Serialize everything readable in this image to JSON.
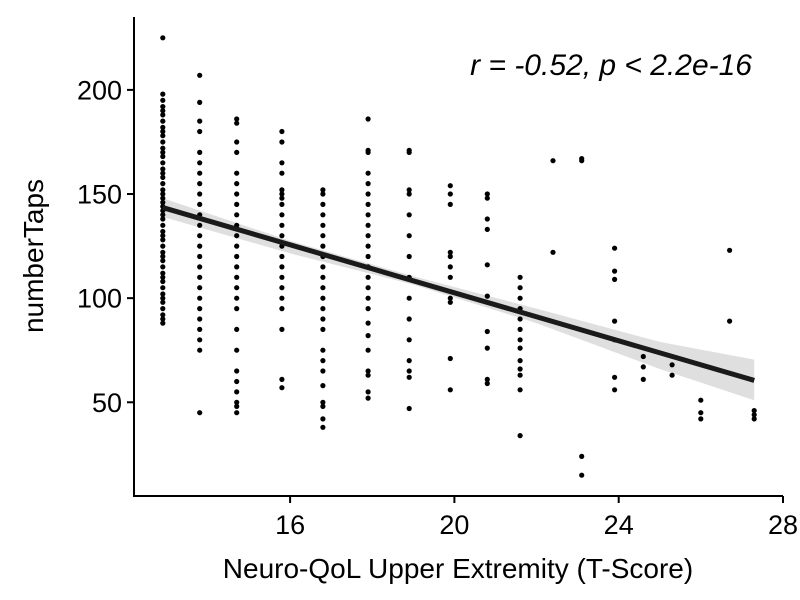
{
  "chart_data": {
    "type": "scatter",
    "title": "",
    "xlabel": "Neuro-QoL Upper Extremity (T-Score)",
    "ylabel": "numberTaps",
    "xlim": [
      12.2,
      28
    ],
    "ylim": [
      5,
      235
    ],
    "xticks": [
      16,
      20,
      24,
      28
    ],
    "yticks": [
      50,
      100,
      150,
      200
    ],
    "annotation": "r = -0.52, p < 2.2e-16",
    "grid": false,
    "legend": "none",
    "point_color": "#000000",
    "line_color": "#1a1a1a",
    "band_color": "#d9d9d9",
    "fit": {
      "x": [
        12.9,
        27.3
      ],
      "y": [
        143.5,
        60.5
      ],
      "band": [
        {
          "x": 12.9,
          "lower": 139,
          "upper": 148
        },
        {
          "x": 16.0,
          "lower": 121.5,
          "upper": 127.5
        },
        {
          "x": 19.0,
          "lower": 106.5,
          "upper": 110.5
        },
        {
          "x": 22.0,
          "lower": 88,
          "upper": 95
        },
        {
          "x": 25.0,
          "lower": 66,
          "upper": 79
        },
        {
          "x": 27.3,
          "lower": 51,
          "upper": 70.5
        }
      ]
    },
    "points": [
      {
        "x": 12.9,
        "y": [
          225,
          198,
          195,
          192,
          190,
          188,
          185,
          182,
          180,
          178,
          175,
          172,
          170,
          168,
          165,
          162,
          160,
          158,
          155,
          152,
          150,
          148,
          146,
          144,
          142,
          140,
          138,
          135,
          132,
          130,
          128,
          125,
          122,
          120,
          118,
          115,
          112,
          110,
          108,
          105,
          102,
          100,
          98,
          95,
          92,
          90,
          88
        ]
      },
      {
        "x": 13.8,
        "y": [
          207,
          194,
          185,
          180,
          170,
          165,
          160,
          155,
          150,
          145,
          140,
          135,
          130,
          125,
          120,
          115,
          110,
          105,
          100,
          95,
          90,
          85,
          80,
          75,
          45
        ]
      },
      {
        "x": 14.7,
        "y": [
          186,
          184,
          175,
          170,
          160,
          155,
          150,
          145,
          140,
          135,
          130,
          125,
          120,
          115,
          110,
          105,
          100,
          95,
          85,
          75,
          65,
          60,
          55,
          50,
          48,
          45
        ]
      },
      {
        "x": 15.8,
        "y": [
          180,
          175,
          165,
          160,
          152,
          150,
          148,
          145,
          140,
          135,
          130,
          125,
          120,
          115,
          110,
          105,
          100,
          95,
          85,
          61,
          57
        ]
      },
      {
        "x": 16.8,
        "y": [
          152,
          150,
          145,
          140,
          135,
          130,
          125,
          120,
          115,
          110,
          105,
          100,
          95,
          90,
          85,
          75,
          70,
          65,
          58,
          50,
          48,
          42,
          38
        ]
      },
      {
        "x": 17.9,
        "y": [
          186,
          171,
          170,
          160,
          155,
          150,
          145,
          140,
          135,
          130,
          125,
          120,
          115,
          110,
          105,
          100,
          95,
          88,
          82,
          75,
          65,
          63,
          55,
          52
        ]
      },
      {
        "x": 18.9,
        "y": [
          171,
          170,
          152,
          150,
          140,
          130,
          120,
          110,
          100,
          90,
          80,
          70,
          65,
          62,
          47
        ]
      },
      {
        "x": 19.9,
        "y": [
          154,
          150,
          145,
          122,
          120,
          115,
          110,
          100,
          98,
          71,
          56
        ]
      },
      {
        "x": 20.8,
        "y": [
          150,
          148,
          138,
          133,
          116,
          101,
          84,
          76,
          61,
          59
        ]
      },
      {
        "x": 21.6,
        "y": [
          110,
          105,
          100,
          95,
          90,
          85,
          80,
          76,
          70,
          66,
          63,
          56,
          34
        ]
      },
      {
        "x": 22.4,
        "y": [
          166,
          122
        ]
      },
      {
        "x": 23.1,
        "y": [
          167,
          166,
          24,
          15
        ]
      },
      {
        "x": 23.9,
        "y": [
          124,
          113,
          109,
          89,
          80,
          62,
          56
        ]
      },
      {
        "x": 24.6,
        "y": [
          72,
          67,
          61
        ]
      },
      {
        "x": 25.3,
        "y": [
          68,
          63
        ]
      },
      {
        "x": 26.0,
        "y": [
          51,
          45,
          42
        ]
      },
      {
        "x": 26.7,
        "y": [
          123,
          89
        ]
      },
      {
        "x": 27.3,
        "y": [
          46,
          44,
          42
        ]
      }
    ]
  }
}
